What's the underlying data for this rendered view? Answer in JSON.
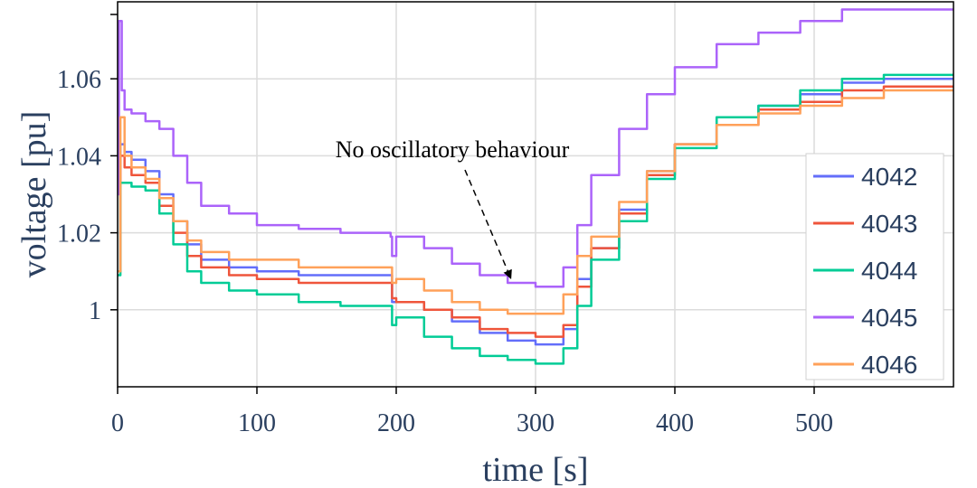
{
  "chart_data": {
    "type": "line",
    "xlabel": "time [s]",
    "ylabel": "voltage [pu]",
    "xlim": [
      0,
      600
    ],
    "ylim": [
      0.98,
      1.08
    ],
    "xticks": [
      0,
      100,
      200,
      300,
      400,
      500
    ],
    "xtick_labels": [
      "0",
      "100",
      "200",
      "300",
      "400",
      "500"
    ],
    "yticks": [
      1.0,
      1.02,
      1.04,
      1.06
    ],
    "ytick_labels": [
      "1",
      "1.02",
      "1.04",
      "1.06"
    ],
    "grid": true,
    "legend_position": "right",
    "annotation": {
      "text": "No oscillatory behaviour",
      "x": 282,
      "y": 1.0065
    },
    "series": [
      {
        "name": "4042",
        "color": "#636efa",
        "x": [
          0,
          2,
          5,
          10,
          20,
          30,
          40,
          50,
          60,
          80,
          100,
          130,
          160,
          196,
          197,
          200,
          220,
          240,
          260,
          280,
          300,
          312,
          320,
          330,
          340,
          360,
          380,
          400,
          430,
          460,
          490,
          520,
          550,
          600
        ],
        "y": [
          1.01,
          1.043,
          1.041,
          1.039,
          1.036,
          1.03,
          1.023,
          1.017,
          1.013,
          1.011,
          1.01,
          1.009,
          1.009,
          1.009,
          1.002,
          1.002,
          1.0,
          0.997,
          0.994,
          0.992,
          0.991,
          0.991,
          0.995,
          1.008,
          1.016,
          1.026,
          1.036,
          1.043,
          1.05,
          1.053,
          1.056,
          1.059,
          1.06,
          1.06
        ]
      },
      {
        "name": "4043",
        "color": "#ef553b",
        "x": [
          0,
          2,
          5,
          10,
          20,
          30,
          40,
          50,
          60,
          80,
          100,
          130,
          160,
          196,
          197,
          200,
          220,
          240,
          260,
          280,
          300,
          312,
          320,
          330,
          340,
          360,
          380,
          400,
          430,
          460,
          490,
          520,
          550,
          600
        ],
        "y": [
          1.01,
          1.04,
          1.037,
          1.035,
          1.033,
          1.027,
          1.02,
          1.014,
          1.011,
          1.009,
          1.008,
          1.007,
          1.007,
          1.007,
          1.003,
          1.002,
          1.0,
          0.998,
          0.995,
          0.994,
          0.993,
          0.993,
          0.996,
          1.006,
          1.016,
          1.025,
          1.035,
          1.043,
          1.048,
          1.052,
          1.054,
          1.057,
          1.058,
          1.058
        ]
      },
      {
        "name": "4044",
        "color": "#00cc96",
        "x": [
          0,
          2,
          5,
          10,
          20,
          30,
          40,
          50,
          60,
          80,
          100,
          130,
          160,
          196,
          197,
          200,
          220,
          240,
          260,
          280,
          300,
          312,
          320,
          330,
          340,
          360,
          380,
          400,
          430,
          460,
          490,
          520,
          550,
          600
        ],
        "y": [
          1.009,
          1.033,
          1.033,
          1.032,
          1.031,
          1.025,
          1.017,
          1.01,
          1.007,
          1.005,
          1.004,
          1.002,
          1.001,
          1.001,
          0.996,
          0.998,
          0.993,
          0.99,
          0.988,
          0.987,
          0.986,
          0.986,
          0.99,
          1.001,
          1.013,
          1.023,
          1.034,
          1.042,
          1.05,
          1.053,
          1.057,
          1.06,
          1.061,
          1.061
        ]
      },
      {
        "name": "4045",
        "color": "#ab63fa",
        "x": [
          0,
          1,
          3,
          5,
          10,
          20,
          30,
          40,
          50,
          60,
          80,
          100,
          130,
          160,
          196,
          197,
          200,
          220,
          240,
          260,
          280,
          300,
          312,
          320,
          330,
          340,
          360,
          380,
          400,
          430,
          460,
          490,
          520,
          550,
          600
        ],
        "y": [
          1.03,
          1.075,
          1.057,
          1.052,
          1.051,
          1.049,
          1.047,
          1.04,
          1.033,
          1.027,
          1.025,
          1.022,
          1.021,
          1.02,
          1.019,
          1.014,
          1.019,
          1.016,
          1.012,
          1.009,
          1.007,
          1.006,
          1.006,
          1.011,
          1.022,
          1.035,
          1.047,
          1.056,
          1.063,
          1.069,
          1.072,
          1.075,
          1.078,
          1.078,
          1.078
        ]
      },
      {
        "name": "4046",
        "color": "#ffa15a",
        "x": [
          0,
          2,
          5,
          10,
          20,
          30,
          40,
          50,
          60,
          80,
          100,
          130,
          160,
          196,
          197,
          200,
          220,
          240,
          260,
          280,
          300,
          312,
          320,
          330,
          340,
          360,
          380,
          400,
          430,
          460,
          490,
          520,
          550,
          600
        ],
        "y": [
          1.01,
          1.05,
          1.04,
          1.037,
          1.034,
          1.029,
          1.023,
          1.018,
          1.015,
          1.013,
          1.013,
          1.011,
          1.011,
          1.011,
          1.007,
          1.008,
          1.005,
          1.002,
          1.0,
          0.999,
          0.999,
          0.999,
          1.004,
          1.014,
          1.019,
          1.028,
          1.036,
          1.043,
          1.048,
          1.051,
          1.053,
          1.055,
          1.057,
          1.057
        ]
      }
    ]
  }
}
